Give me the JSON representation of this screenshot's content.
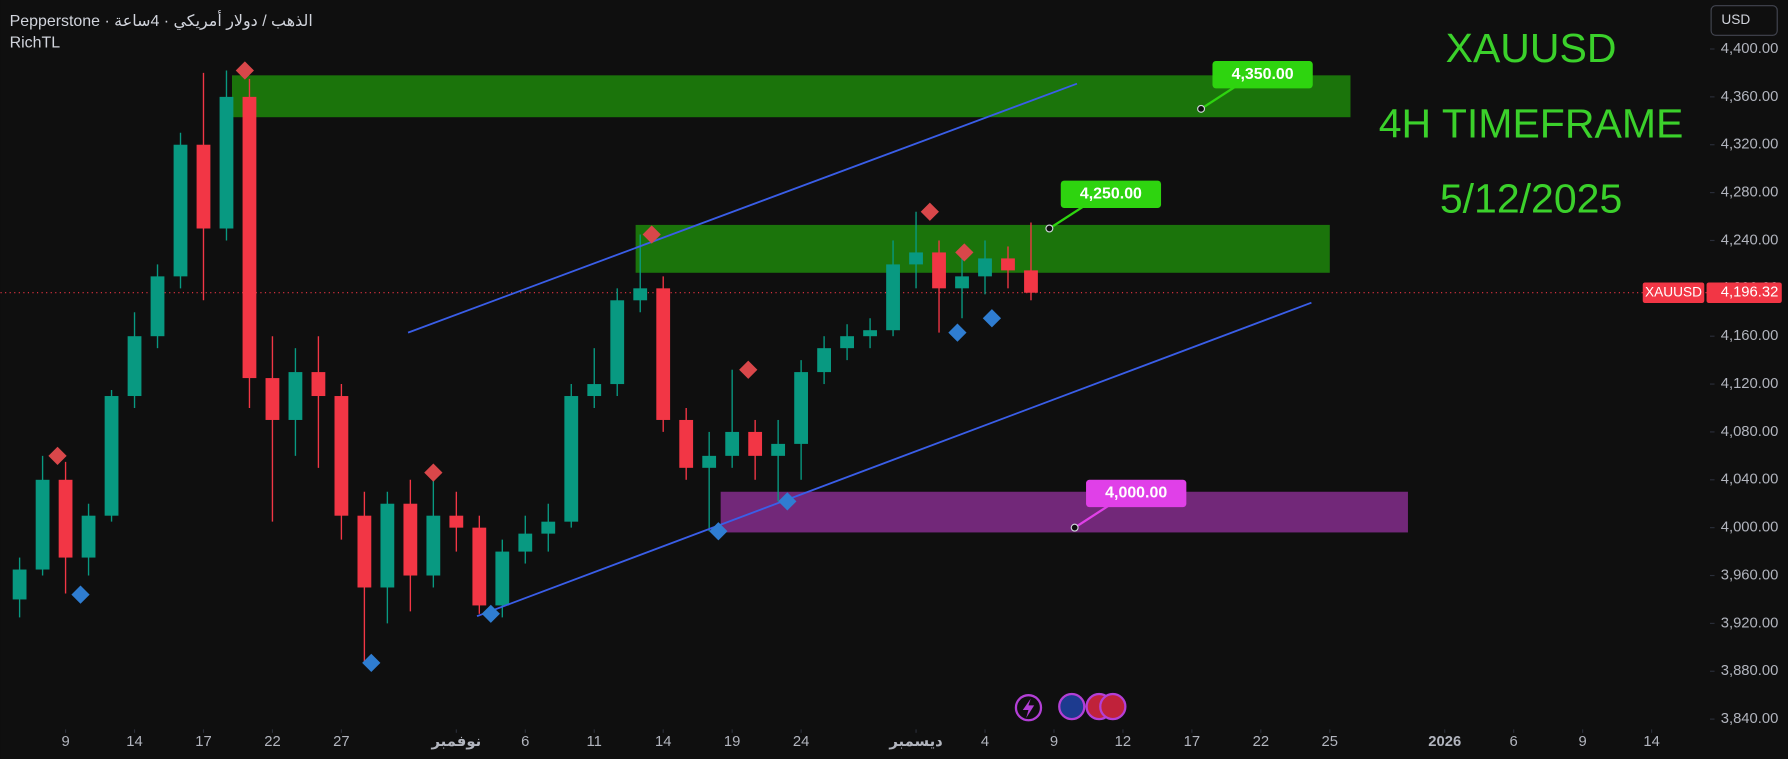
{
  "header": {
    "symbol_line": "Pepperstone · الذهب / دولار أمريكي · 4ساعة",
    "indicator": "RichTL",
    "currency": "USD"
  },
  "chart_data": {
    "type": "candlestick",
    "annotations": [
      "XAUUSD",
      "4H TIMEFRAME",
      "5/12/2025"
    ],
    "annotation_color": "#3bd12b",
    "x": [
      -2,
      -1,
      0,
      1,
      2,
      3,
      4,
      5,
      6,
      7,
      8,
      9,
      10,
      11,
      12,
      13,
      14,
      15,
      16,
      17,
      18,
      19,
      20,
      21,
      22,
      23,
      24,
      25,
      26,
      27,
      28,
      29,
      30,
      31,
      32,
      33,
      34,
      35,
      36,
      37,
      38,
      39,
      40,
      41,
      42
    ],
    "open": [
      3940,
      3965,
      4040,
      3975,
      4010,
      4110,
      4160,
      4210,
      4320,
      4250,
      4360,
      4125,
      4090,
      4130,
      4110,
      4010,
      3950,
      4020,
      3960,
      4010,
      4000,
      3935,
      3980,
      3995,
      4005,
      4110,
      4120,
      4190,
      4200,
      4090,
      4050,
      4060,
      4080,
      4060,
      4070,
      4130,
      4150,
      4160,
      4165,
      4220,
      4230,
      4200,
      4210,
      4225,
      4215
    ],
    "high": [
      3975,
      4060,
      4055,
      4020,
      4115,
      4180,
      4220,
      4330,
      4380,
      4382,
      4375,
      4160,
      4150,
      4160,
      4120,
      4030,
      4030,
      4040,
      4046,
      4030,
      4010,
      3990,
      4010,
      4020,
      4120,
      4150,
      4200,
      4245,
      4210,
      4100,
      4080,
      4132,
      4090,
      4090,
      4140,
      4160,
      4170,
      4175,
      4240,
      4264,
      4240,
      4230,
      4240,
      4235,
      4255
    ],
    "low": [
      3925,
      3960,
      3945,
      3960,
      4005,
      4100,
      4150,
      4200,
      4190,
      4240,
      4100,
      4005,
      4060,
      4050,
      3990,
      3887,
      3920,
      3930,
      3950,
      3980,
      3928,
      3925,
      3970,
      3980,
      4000,
      4100,
      4110,
      4180,
      4080,
      4040,
      3997,
      4050,
      4040,
      4022,
      4040,
      4120,
      4140,
      4150,
      4160,
      4200,
      4163,
      4175,
      4195,
      4200,
      4190
    ],
    "close": [
      3965,
      4040,
      3975,
      4010,
      4110,
      4160,
      4210,
      4320,
      4250,
      4360,
      4125,
      4090,
      4130,
      4110,
      4010,
      3950,
      4020,
      3960,
      4010,
      4000,
      3935,
      3980,
      3995,
      4005,
      4110,
      4120,
      4190,
      4200,
      4090,
      4050,
      4060,
      4080,
      4060,
      4070,
      4130,
      4150,
      4160,
      4165,
      4220,
      4230,
      4200,
      4210,
      4225,
      4215,
      4196.32
    ],
    "up_color": "#089981",
    "down_color": "#f23645",
    "xlim": [
      -2.83,
      71.54
    ],
    "xticks": [
      {
        "value": 0,
        "label": "9"
      },
      {
        "value": 3,
        "label": "14"
      },
      {
        "value": 6,
        "label": "17"
      },
      {
        "value": 9,
        "label": "22"
      },
      {
        "value": 12,
        "label": "27"
      },
      {
        "value": 17,
        "label": "نوفمبر"
      },
      {
        "value": 20,
        "label": "6"
      },
      {
        "value": 23,
        "label": "11"
      },
      {
        "value": 26,
        "label": "14"
      },
      {
        "value": 29,
        "label": "19"
      },
      {
        "value": 32,
        "label": "24"
      },
      {
        "value": 37,
        "label": "ديسمبر"
      },
      {
        "value": 40,
        "label": "4"
      },
      {
        "value": 43,
        "label": "9"
      },
      {
        "value": 46,
        "label": "12"
      },
      {
        "value": 49,
        "label": "17"
      },
      {
        "value": 52,
        "label": "22"
      },
      {
        "value": 55,
        "label": "25"
      },
      {
        "value": 60,
        "label": "2026"
      },
      {
        "value": 63,
        "label": "6"
      },
      {
        "value": 66,
        "label": "9"
      },
      {
        "value": 69,
        "label": "14"
      }
    ],
    "ylim": [
      3840,
      4400
    ],
    "yticks": [
      {
        "value": 4400,
        "label": "4,400.00"
      },
      {
        "value": 4360,
        "label": "4,360.00"
      },
      {
        "value": 4320,
        "label": "4,320.00"
      },
      {
        "value": 4280,
        "label": "4,280.00"
      },
      {
        "value": 4240,
        "label": "4,240.00"
      },
      {
        "value": 4200,
        "label": "4,200.00"
      },
      {
        "value": 4160,
        "label": "4,160.00"
      },
      {
        "value": 4120,
        "label": "4,120.00"
      },
      {
        "value": 4080,
        "label": "4,080.00"
      },
      {
        "value": 4040,
        "label": "4,040.00"
      },
      {
        "value": 4000,
        "label": "4,000.00"
      },
      {
        "value": 3960,
        "label": "3,960.00"
      },
      {
        "value": 3920,
        "label": "3,920.00"
      },
      {
        "value": 3880,
        "label": "3,880.00"
      },
      {
        "value": 3840,
        "label": "3,840.00"
      }
    ],
    "last_price": {
      "name": "XAUUSD",
      "value": 4196.32,
      "label": "4,196.32",
      "color": "#f23645"
    },
    "zones": [
      {
        "x": [
          7.24,
          55.9
        ],
        "y": [
          4343,
          4378
        ],
        "color": "#1c7a0c"
      },
      {
        "x": [
          24.8,
          55.0
        ],
        "y": [
          4213,
          4253
        ],
        "color": "#1c7a0c"
      },
      {
        "x": [
          28.5,
          58.4
        ],
        "y": [
          3996,
          4030
        ],
        "color": "#782a80"
      }
    ],
    "trendlines": [
      {
        "x": [
          14.9,
          44.0
        ],
        "y": [
          4163,
          4371
        ],
        "color": "#3a5ee8"
      },
      {
        "x": [
          17.9,
          54.2
        ],
        "y": [
          3926,
          4188
        ],
        "color": "#3a5ee8"
      }
    ],
    "price_labels": [
      {
        "x": 49.4,
        "value": 4350,
        "label": "4,350.00",
        "color": "#2ed40f"
      },
      {
        "x": 42.8,
        "value": 4250,
        "label": "4,250.00",
        "color": "#2ed40f"
      },
      {
        "x": 43.9,
        "value": 4000,
        "label": "4,000.00",
        "color": "#e040e8"
      }
    ],
    "pivot_highs": {
      "x": [
        -0.35,
        7.8,
        16,
        25.5,
        29.7,
        37.6,
        39.1
      ],
      "values": [
        4060,
        4382,
        4046,
        4245,
        4132,
        4264,
        4230
      ],
      "color": "#d9474a"
    },
    "pivot_lows": {
      "x": [
        0.65,
        13.3,
        18.5,
        28.4,
        31.4,
        38.8,
        40.3
      ],
      "values": [
        3944,
        3887,
        3928,
        3997,
        4022,
        4163,
        4175
      ],
      "color": "#2f7dd1"
    }
  }
}
